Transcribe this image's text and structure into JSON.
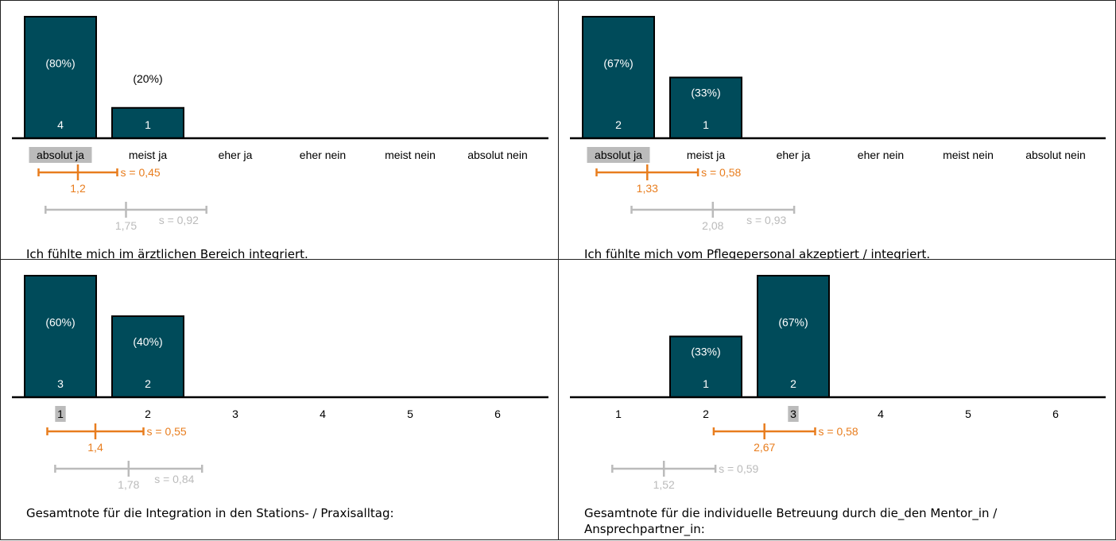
{
  "colors": {
    "bar": "#004B5A",
    "bar_text": "#ffffff",
    "mean": "#E87D1E",
    "comparison": "#BBBBBB",
    "highlight": "#BBBBBB"
  },
  "chart_data": [
    {
      "type": "bar",
      "title": "Ich fühlte mich im ärztlichen Bereich integriert.",
      "categories": [
        "absolut ja",
        "meist ja",
        "eher ja",
        "eher nein",
        "meist nein",
        "absolut nein"
      ],
      "values": [
        4,
        1,
        0,
        0,
        0,
        0
      ],
      "percent_labels": [
        "(80%)",
        "(20%)",
        "",
        "",
        "",
        ""
      ],
      "count_labels": [
        "4",
        "1",
        "",
        "",
        "",
        ""
      ],
      "highlight_index": 0,
      "ylim": [
        0,
        4
      ],
      "mean": {
        "value": 1.2,
        "label": "1,2",
        "s": 0.45,
        "s_label": "s = 0,45"
      },
      "comparison": {
        "value": 1.75,
        "label": "1,75",
        "s": 0.92,
        "s_label": "s = 0,92"
      }
    },
    {
      "type": "bar",
      "title": "Ich fühlte mich vom Pflegepersonal akzeptiert / integriert.",
      "categories": [
        "absolut ja",
        "meist ja",
        "eher ja",
        "eher nein",
        "meist nein",
        "absolut nein"
      ],
      "values": [
        2,
        1,
        0,
        0,
        0,
        0
      ],
      "percent_labels": [
        "(67%)",
        "(33%)",
        "",
        "",
        "",
        ""
      ],
      "count_labels": [
        "2",
        "1",
        "",
        "",
        "",
        ""
      ],
      "highlight_index": 0,
      "ylim": [
        0,
        2
      ],
      "mean": {
        "value": 1.33,
        "label": "1,33",
        "s": 0.58,
        "s_label": "s = 0,58"
      },
      "comparison": {
        "value": 2.08,
        "label": "2,08",
        "s": 0.93,
        "s_label": "s = 0,93"
      }
    },
    {
      "type": "bar",
      "title": "Gesamtnote für die Integration in den Stations- / Praxisalltag:",
      "categories": [
        "1",
        "2",
        "3",
        "4",
        "5",
        "6"
      ],
      "values": [
        3,
        2,
        0,
        0,
        0,
        0
      ],
      "percent_labels": [
        "(60%)",
        "(40%)",
        "",
        "",
        "",
        ""
      ],
      "count_labels": [
        "3",
        "2",
        "",
        "",
        "",
        ""
      ],
      "highlight_index": 0,
      "ylim": [
        0,
        3
      ],
      "mean": {
        "value": 1.4,
        "label": "1,4",
        "s": 0.55,
        "s_label": "s = 0,55"
      },
      "comparison": {
        "value": 1.78,
        "label": "1,78",
        "s": 0.84,
        "s_label": "s = 0,84"
      }
    },
    {
      "type": "bar",
      "title": "Gesamtnote für die individuelle Betreuung durch die_den Mentor_in / Ansprechpartner_in:",
      "categories": [
        "1",
        "2",
        "3",
        "4",
        "5",
        "6"
      ],
      "values": [
        0,
        1,
        2,
        0,
        0,
        0
      ],
      "percent_labels": [
        "",
        "(33%)",
        "(67%)",
        "",
        "",
        ""
      ],
      "count_labels": [
        "",
        "1",
        "2",
        "",
        "",
        ""
      ],
      "highlight_index": 2,
      "ylim": [
        0,
        2
      ],
      "mean": {
        "value": 2.67,
        "label": "2,67",
        "s": 0.58,
        "s_label": "s = 0,58"
      },
      "comparison": {
        "value": 1.52,
        "label": "1,52",
        "s": 0.59,
        "s_label": "s = 0,59"
      }
    }
  ]
}
